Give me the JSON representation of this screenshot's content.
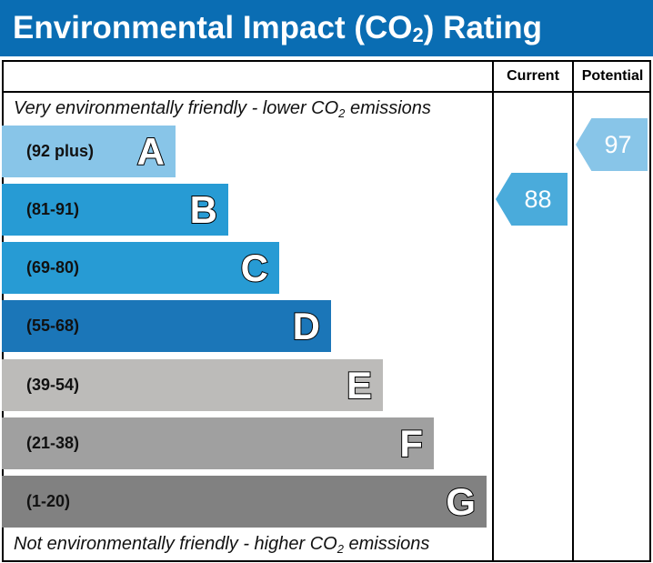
{
  "header": {
    "title_pre": "Environmental Impact (CO",
    "title_sub": "2",
    "title_post": ") Rating",
    "color": "#0a6db3"
  },
  "columns": {
    "current": "Current",
    "potential": "Potential"
  },
  "notes": {
    "top_pre": "Very environmentally friendly - lower CO",
    "top_sub": "2",
    "top_post": " emissions",
    "bottom_pre": "Not environmentally friendly - higher CO",
    "bottom_sub": "2",
    "bottom_post": " emissions"
  },
  "chart_data": {
    "type": "bar",
    "title": "Environmental Impact (CO2) Rating",
    "bands": [
      {
        "letter": "A",
        "range": "(92 plus)",
        "color": "#88c5e8"
      },
      {
        "letter": "B",
        "range": "(81-91)",
        "color": "#279bd4"
      },
      {
        "letter": "C",
        "range": "(69-80)",
        "color": "#279bd4"
      },
      {
        "letter": "D",
        "range": "(55-68)",
        "color": "#1b76b8"
      },
      {
        "letter": "E",
        "range": "(39-54)",
        "color": "#bcbbb9"
      },
      {
        "letter": "F",
        "range": "(21-38)",
        "color": "#a0a0a0"
      },
      {
        "letter": "G",
        "range": "(1-20)",
        "color": "#818181"
      }
    ],
    "current": {
      "value": "88",
      "band": "B",
      "color": "#4aabdb"
    },
    "potential": {
      "value": "97",
      "band": "A",
      "color": "#88c5e8"
    }
  }
}
